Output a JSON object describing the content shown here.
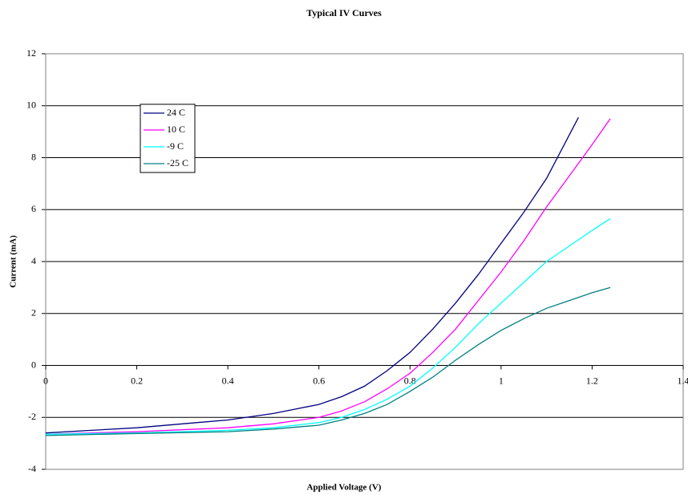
{
  "chart_data": {
    "type": "line",
    "title": "Typical IV Curves",
    "x_label": "Applied Voltage (V)",
    "y_label": "Current (mA)",
    "xlim": [
      0,
      1.4
    ],
    "xticks": [
      0,
      0.2,
      0.4,
      0.6,
      0.8,
      1,
      1.2,
      1.4
    ],
    "ylim": [
      -4,
      12
    ],
    "yticks": [
      -4,
      -2,
      0,
      2,
      4,
      6,
      8,
      10,
      12
    ],
    "grid": true,
    "legend": "upper-left",
    "series": [
      {
        "name": "24 C",
        "color": "#000080",
        "x": [
          0,
          0.1,
          0.2,
          0.3,
          0.4,
          0.5,
          0.6,
          0.65,
          0.7,
          0.75,
          0.8,
          0.85,
          0.9,
          0.95,
          1.0,
          1.05,
          1.1,
          1.17
        ],
        "values": [
          -2.6,
          -2.5,
          -2.4,
          -2.25,
          -2.1,
          -1.85,
          -1.5,
          -1.2,
          -0.8,
          -0.2,
          0.5,
          1.4,
          2.4,
          3.5,
          4.7,
          5.9,
          7.2,
          9.55
        ]
      },
      {
        "name": "10 C",
        "color": "#ff00ff",
        "x": [
          0,
          0.2,
          0.4,
          0.5,
          0.6,
          0.65,
          0.7,
          0.75,
          0.8,
          0.85,
          0.9,
          0.95,
          1.0,
          1.05,
          1.1,
          1.15,
          1.2,
          1.24
        ],
        "values": [
          -2.65,
          -2.55,
          -2.4,
          -2.25,
          -2.0,
          -1.75,
          -1.4,
          -0.9,
          -0.3,
          0.5,
          1.4,
          2.5,
          3.6,
          4.8,
          6.1,
          7.3,
          8.5,
          9.5
        ]
      },
      {
        "name": "-9 C",
        "color": "#00ffff",
        "x": [
          0,
          0.2,
          0.4,
          0.5,
          0.6,
          0.65,
          0.7,
          0.75,
          0.8,
          0.85,
          0.9,
          0.95,
          1.0,
          1.05,
          1.1,
          1.15,
          1.2,
          1.24
        ],
        "values": [
          -2.65,
          -2.6,
          -2.5,
          -2.4,
          -2.2,
          -2.0,
          -1.7,
          -1.3,
          -0.8,
          -0.1,
          0.7,
          1.6,
          2.4,
          3.2,
          4.0,
          4.6,
          5.2,
          5.65
        ]
      },
      {
        "name": "-25 C",
        "color": "#008080",
        "x": [
          0,
          0.2,
          0.4,
          0.5,
          0.6,
          0.65,
          0.7,
          0.75,
          0.8,
          0.85,
          0.9,
          0.95,
          1.0,
          1.05,
          1.1,
          1.15,
          1.2,
          1.24
        ],
        "values": [
          -2.7,
          -2.62,
          -2.55,
          -2.45,
          -2.3,
          -2.1,
          -1.85,
          -1.5,
          -1.0,
          -0.45,
          0.2,
          0.8,
          1.35,
          1.8,
          2.2,
          2.5,
          2.8,
          3.0
        ]
      }
    ]
  }
}
